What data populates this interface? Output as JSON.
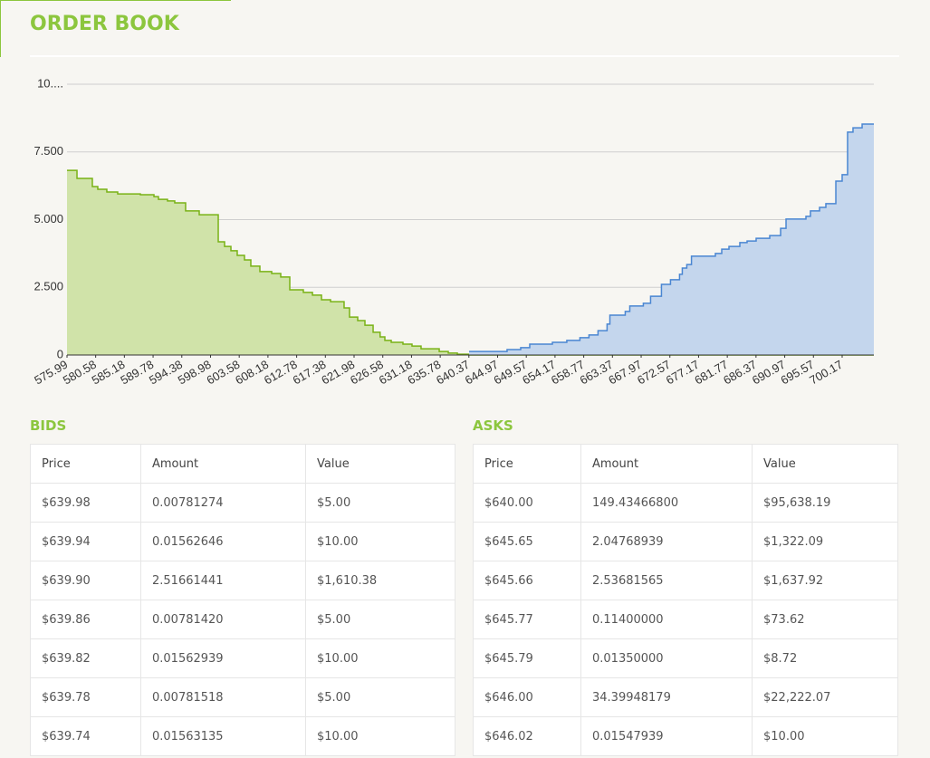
{
  "header": {
    "title": "ORDER BOOK"
  },
  "chart_data": {
    "type": "step-area",
    "xlim": [
      575.99,
      705.25
    ],
    "xticks": [
      575.99,
      580.58,
      585.18,
      589.78,
      594.38,
      598.98,
      603.58,
      608.18,
      612.78,
      617.38,
      621.98,
      626.58,
      631.18,
      635.78,
      640.37,
      644.97,
      649.57,
      654.17,
      658.77,
      663.37,
      667.97,
      672.57,
      677.17,
      681.77,
      686.37,
      690.97,
      695.57,
      700.17
    ],
    "ylim": [
      0,
      10
    ],
    "yticks": [
      0,
      {
        "value": 2.5,
        "label": "2.500"
      },
      {
        "value": 5,
        "label": "5.000"
      },
      {
        "value": 7.5,
        "label": "7.500"
      },
      {
        "value": 10,
        "label": "10...."
      }
    ],
    "grid": true,
    "series": [
      {
        "color": "#79b216",
        "fill": "#d0e3a9",
        "x": [
          575.99,
          577.59,
          580.05,
          580.92,
          582.37,
          584.11,
          587.74,
          589.92,
          590.64,
          592.09,
          593.25,
          594.99,
          597.17,
          600.22,
          601.23,
          602.25,
          603.26,
          604.42,
          605.44,
          606.89,
          608.78,
          610.23,
          611.68,
          613.85,
          615.31,
          616.76,
          618.21,
          620.38,
          621.25,
          622.56,
          623.72,
          625.03,
          626.15,
          626.91,
          627.93,
          629.81,
          631.26,
          632.71,
          635.62,
          637.07,
          638.52,
          640.4
        ],
        "values": [
          6.82,
          6.52,
          6.22,
          6.12,
          6.02,
          5.95,
          5.92,
          5.85,
          5.75,
          5.69,
          5.62,
          5.32,
          5.18,
          4.18,
          4.01,
          3.85,
          3.68,
          3.51,
          3.28,
          3.08,
          3.01,
          2.88,
          2.41,
          2.31,
          2.21,
          2.04,
          1.97,
          1.74,
          1.4,
          1.27,
          1.1,
          0.84,
          0.67,
          0.54,
          0.47,
          0.4,
          0.33,
          0.23,
          0.13,
          0.07,
          0.03,
          0
        ]
      },
      {
        "color": "#4a86d2",
        "fill": "#c4d6ed",
        "x": [
          640.4,
          646.49,
          648.67,
          650.12,
          653.75,
          656.06,
          658.16,
          659.61,
          661.06,
          662.51,
          662.96,
          665.42,
          666.15,
          668.32,
          669.48,
          671.22,
          672.67,
          674.12,
          674.56,
          675.28,
          676.03,
          679.86,
          680.88,
          682.04,
          683.78,
          684.94,
          686.39,
          688.57,
          690.31,
          691.18,
          694.37,
          695.09,
          696.55,
          697.56,
          699.16,
          700.17,
          701.04,
          701.91,
          703.37
        ],
        "values": [
          0.13,
          0.2,
          0.27,
          0.4,
          0.47,
          0.54,
          0.64,
          0.74,
          0.9,
          1.14,
          1.47,
          1.61,
          1.81,
          1.91,
          2.17,
          2.61,
          2.78,
          2.98,
          3.21,
          3.34,
          3.65,
          3.75,
          3.91,
          4.01,
          4.15,
          4.21,
          4.31,
          4.41,
          4.68,
          5.02,
          5.12,
          5.32,
          5.45,
          5.59,
          6.42,
          6.66,
          8.23,
          8.39,
          8.53
        ]
      }
    ]
  },
  "bids": {
    "title": "BIDS",
    "columns": [
      "Price",
      "Amount",
      "Value"
    ],
    "rows": [
      [
        "$639.98",
        "0.00781274",
        "$5.00"
      ],
      [
        "$639.94",
        "0.01562646",
        "$10.00"
      ],
      [
        "$639.90",
        "2.51661441",
        "$1,610.38"
      ],
      [
        "$639.86",
        "0.00781420",
        "$5.00"
      ],
      [
        "$639.82",
        "0.01562939",
        "$10.00"
      ],
      [
        "$639.78",
        "0.00781518",
        "$5.00"
      ],
      [
        "$639.74",
        "0.01563135",
        "$10.00"
      ]
    ]
  },
  "asks": {
    "title": "ASKS",
    "columns": [
      "Price",
      "Amount",
      "Value"
    ],
    "rows": [
      [
        "$640.00",
        "149.43466800",
        "$95,638.19"
      ],
      [
        "$645.65",
        "2.04768939",
        "$1,322.09"
      ],
      [
        "$645.66",
        "2.53681565",
        "$1,637.92"
      ],
      [
        "$645.77",
        "0.11400000",
        "$73.62"
      ],
      [
        "$645.79",
        "0.01350000",
        "$8.72"
      ],
      [
        "$646.00",
        "34.39948179",
        "$22,222.07"
      ],
      [
        "$646.02",
        "0.01547939",
        "$10.00"
      ]
    ]
  }
}
